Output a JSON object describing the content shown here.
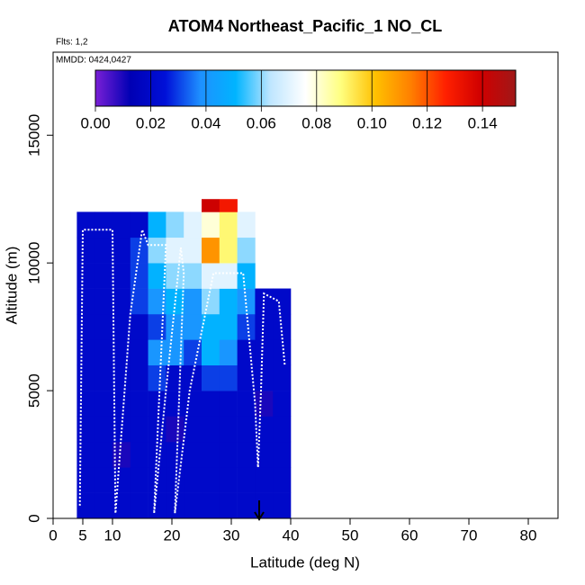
{
  "chart_data": {
    "type": "heatmap",
    "title": "ATOM4 Northeast_Pacific_1 NO_CL",
    "flights_note": "Flts: 1,2",
    "date_note": "MMDD: 0424,0427",
    "x_label": "Latitude (deg N)",
    "y_label": "Altitude (m)",
    "xlim": [
      0,
      85
    ],
    "ylim": [
      0,
      18250
    ],
    "xticks": [
      0,
      5,
      10,
      20,
      30,
      40,
      50,
      60,
      70,
      80
    ],
    "yticks": [
      0,
      5000,
      10000,
      15000
    ],
    "x_edges": [
      4,
      7,
      10,
      13,
      16,
      19,
      22,
      25,
      28,
      31,
      34,
      37,
      40
    ],
    "y_edges": [
      0,
      1000,
      2000,
      3000,
      4000,
      5000,
      6000,
      7000,
      8000,
      9000,
      10000,
      11000,
      12000,
      12500
    ],
    "values": [
      [
        0.02,
        0.02,
        0.02,
        0.02,
        0.02,
        0.02,
        0.02,
        0.02,
        0.02,
        0.02,
        0.02,
        0.02
      ],
      [
        0.02,
        0.02,
        0.02,
        0.02,
        0.02,
        0.02,
        0.02,
        0.02,
        0.02,
        0.02,
        0.02,
        0.02
      ],
      [
        0.02,
        0.02,
        0.01,
        0.02,
        0.02,
        0.02,
        0.02,
        0.02,
        0.02,
        0.02,
        0.02,
        0.02
      ],
      [
        0.02,
        0.02,
        0.02,
        0.02,
        0.02,
        0.01,
        0.02,
        0.02,
        0.02,
        0.02,
        0.02,
        0.02
      ],
      [
        0.02,
        0.02,
        0.02,
        0.02,
        0.02,
        0.02,
        0.02,
        0.02,
        0.02,
        0.02,
        0.01,
        0.02
      ],
      [
        0.02,
        0.02,
        0.02,
        0.02,
        0.03,
        0.02,
        0.02,
        0.03,
        0.03,
        0.02,
        0.02,
        0.02
      ],
      [
        0.02,
        0.02,
        0.02,
        0.02,
        0.04,
        0.04,
        0.03,
        0.05,
        0.04,
        0.02,
        0.02,
        0.02
      ],
      [
        0.02,
        0.02,
        0.02,
        0.02,
        0.03,
        0.04,
        0.04,
        0.05,
        0.05,
        0.03,
        0.02,
        0.02
      ],
      [
        0.02,
        0.02,
        0.02,
        0.03,
        0.04,
        0.05,
        0.04,
        0.06,
        0.05,
        0.04,
        0.02,
        0.02
      ],
      [
        0.02,
        0.02,
        0.02,
        0.03,
        0.05,
        0.06,
        0.06,
        0.07,
        0.07,
        0.05,
        null,
        null
      ],
      [
        0.02,
        0.02,
        0.02,
        0.03,
        0.06,
        0.07,
        0.07,
        0.11,
        0.09,
        0.06,
        null,
        null
      ],
      [
        0.02,
        0.02,
        0.02,
        0.02,
        0.05,
        0.06,
        0.07,
        0.08,
        0.09,
        0.07,
        null,
        null
      ],
      [
        null,
        null,
        null,
        null,
        null,
        null,
        null,
        0.14,
        0.13,
        null,
        null,
        null
      ]
    ],
    "clim": [
      0,
      0.152
    ],
    "colorscale": [
      "#7a1fd6",
      "#0000b4",
      "#0010d8",
      "#1e90ff",
      "#00b4ff",
      "#bfe6ff",
      "#ffffff",
      "#ffff80",
      "#ffc000",
      "#ff8000",
      "#ff2000",
      "#d00000",
      "#a01818"
    ],
    "cticks": [
      {
        "value": 0,
        "label": "0.00"
      },
      {
        "value": 0.02,
        "label": "0.02"
      },
      {
        "value": 0.04,
        "label": "0.04"
      },
      {
        "value": 0.06,
        "label": "0.06"
      },
      {
        "value": 0.08,
        "label": "0.08"
      },
      {
        "value": 0.1,
        "label": "0.10"
      },
      {
        "value": 0.12,
        "label": "0.12"
      },
      {
        "value": 0.14,
        "label": "0.14"
      }
    ],
    "track": {
      "color": "#ffffff",
      "x": [
        4.5,
        5,
        10,
        10.5,
        13,
        15,
        16,
        19,
        17,
        19,
        21.5,
        22,
        20.5,
        23,
        27,
        32,
        34,
        34.5,
        35,
        35.5,
        38,
        39
      ],
      "y": [
        500,
        11300,
        11300,
        200,
        8000,
        11300,
        10700,
        10700,
        200,
        5000,
        10600,
        9600,
        200,
        5000,
        9600,
        9600,
        4500,
        2000,
        5000,
        8800,
        8500,
        6000
      ]
    }
  }
}
